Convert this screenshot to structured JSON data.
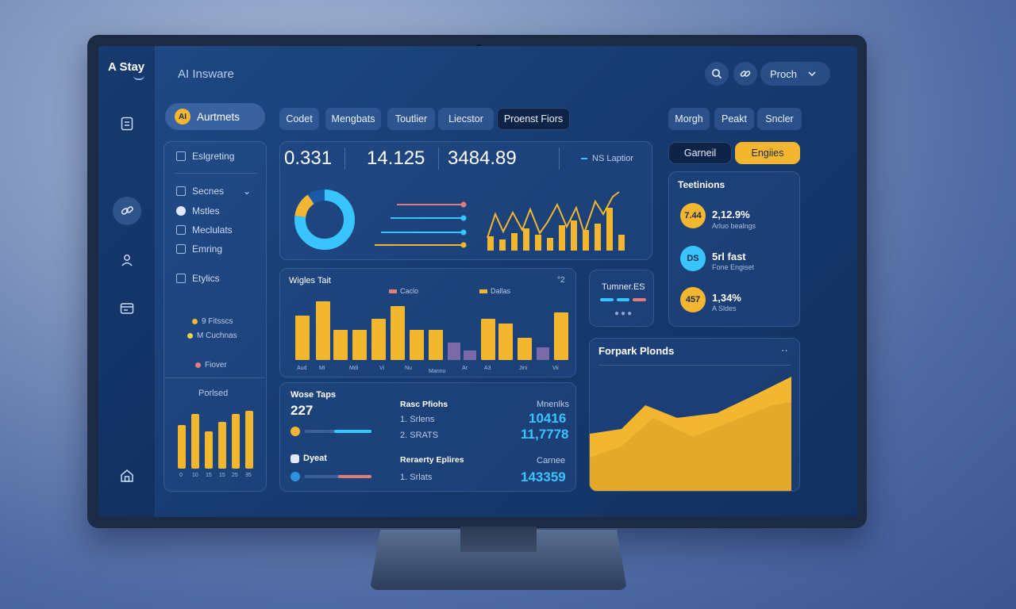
{
  "app": {
    "logo": "A Stay",
    "title": "AI Insware"
  },
  "header": {
    "select_label": "Proch"
  },
  "top_tabs": [
    "Codet",
    "Mengbats",
    "Toutlier",
    "Liecstor",
    "Proenst Fiors"
  ],
  "right_tabs": [
    "Morgh",
    "Peakt",
    "Sncler"
  ],
  "toggle": {
    "left": "Garneil",
    "right": "Engiies"
  },
  "nav": {
    "pill_badge": "AI",
    "pill_label": "Aurtmets",
    "items": [
      "Eslgreting",
      "Secnes",
      "Mstles",
      "Meclulats",
      "Emring",
      "Etylics"
    ],
    "legend": [
      "9 Fitsscs",
      "M Cuchnas",
      "Fiover"
    ],
    "chart_title": "Porlsed",
    "chart_ticks": [
      "0",
      "10",
      "15",
      "15",
      "25",
      "35"
    ]
  },
  "stats": {
    "a": "0.331",
    "b": "14.125",
    "c": "3484.89",
    "label": "NS Laptior"
  },
  "line_colors": [
    "#e07c7c",
    "#39c4ff",
    "#39c4ff",
    "#f2b631"
  ],
  "bar_panel": {
    "title": "Wigles Tait",
    "more": "°2",
    "legend": [
      "Caclo",
      "Dallas"
    ],
    "x_labels": [
      "Aud",
      "Mi",
      "Mdi",
      "Vi",
      "Nu",
      "Mannu",
      "Ar",
      "A3",
      "Jini",
      "Vii"
    ]
  },
  "mini": {
    "title": "Tumner.ES"
  },
  "kpis": {
    "title": "Teetinions",
    "items": [
      {
        "badge": "7.44",
        "value": "2,12.9%",
        "sub": "Arluo bealngs",
        "color": "#f2b631"
      },
      {
        "badge": "DS",
        "value": "5rl fast",
        "sub": "Fone Engiset",
        "color": "#39c4ff"
      },
      {
        "badge": "457",
        "value": "1,34%",
        "sub": "A Sldes",
        "color": "#f2b631"
      }
    ]
  },
  "table_panel": {
    "left_title": "Wose Taps",
    "left_value": "227",
    "left2_title": "Dyeat",
    "mid_title": "Rasc Pfiohs",
    "mid_rows": [
      "1. Srlens",
      "2. SRATS"
    ],
    "mid2_title": "Reraerty Eplires",
    "mid2_rows": [
      "1. Srlats"
    ],
    "right_title": "Mnenlks",
    "right_values": [
      "10416",
      "11,7778"
    ],
    "right2_title": "Carnee",
    "right2_value": "143359"
  },
  "area_panel": {
    "title": "Forpark Plonds",
    "more": "··"
  },
  "colors": {
    "accent_yellow": "#f2b631",
    "accent_blue": "#39c4ff",
    "accent_red": "#e07c7c",
    "accent_purple": "#7b6aa8"
  }
}
